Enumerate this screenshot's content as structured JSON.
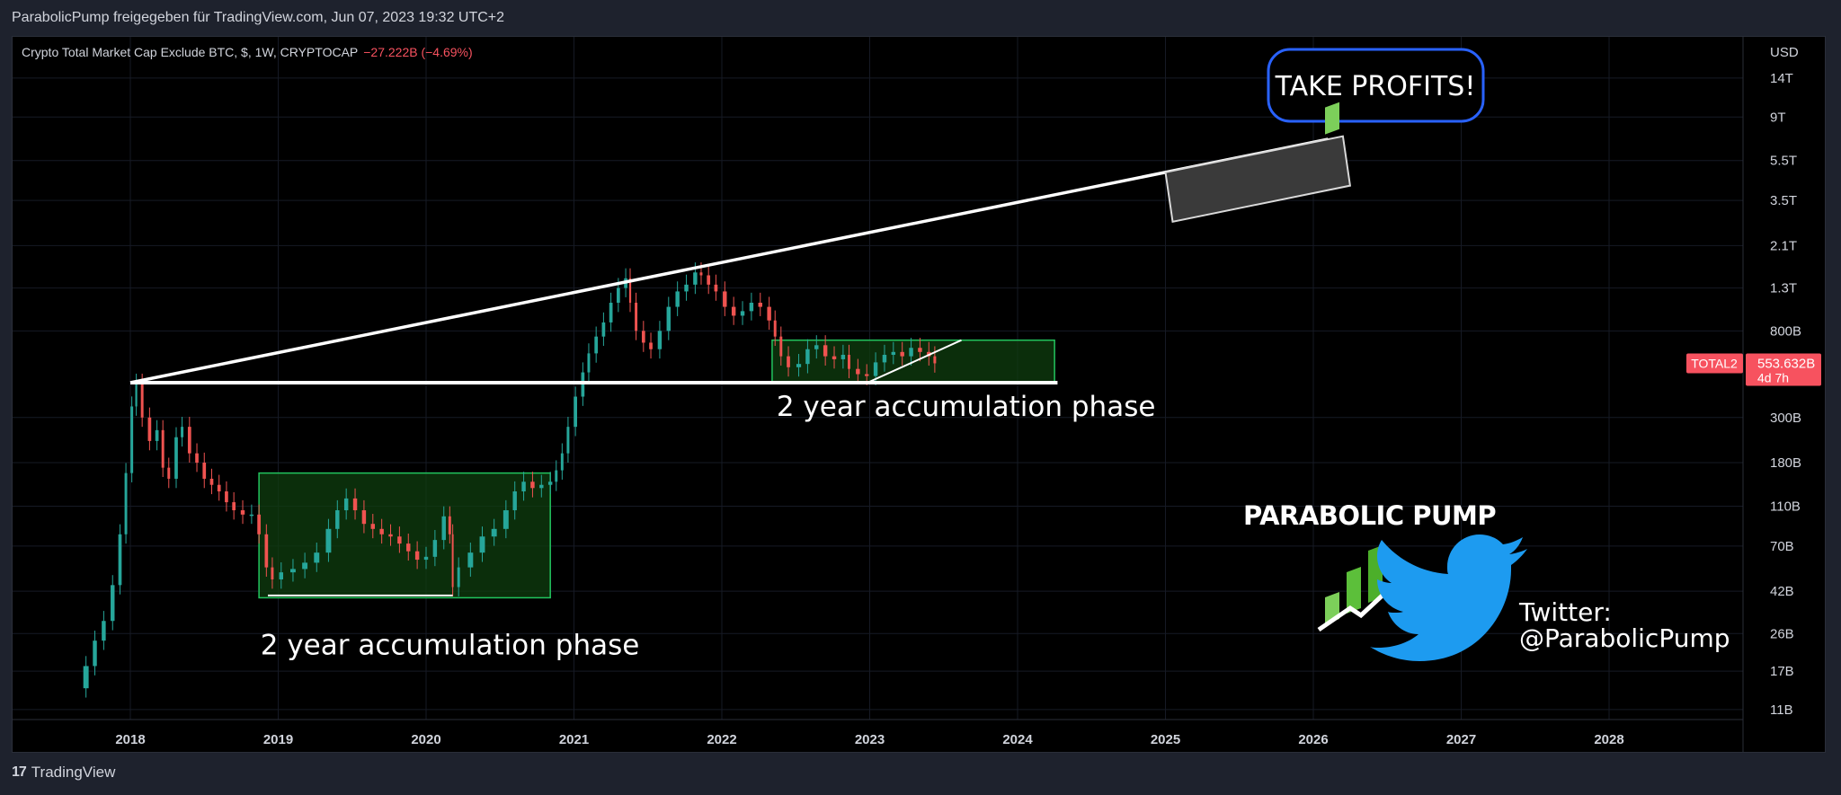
{
  "header": {
    "share_text": "ParabolicPump freigegeben für TradingView.com, Jun 07, 2023 19:32 UTC+2"
  },
  "legend": {
    "symbol_text": "Crypto Total Market Cap Exclude BTC, $, 1W, CRYPTOCAP",
    "change_text": "−27.222B (−4.69%)"
  },
  "footer": {
    "brand": "TradingView"
  },
  "colors": {
    "up": "#26a69a",
    "down": "#ef5350",
    "box_stroke": "#22c55e",
    "box_fill": "#0f3d0f",
    "line": "#ffffff",
    "axis_text": "#d1d4dc",
    "price_tag": "#f7525f",
    "callout_border": "#2962ff",
    "twitter": "#1d9bf0"
  },
  "chart_data": {
    "type": "candlestick",
    "title": "Crypto Total Market Cap Exclude BTC, $, 1W, CRYPTOCAP",
    "scale": "log",
    "y_unit": "USD",
    "ylim": [
      9500000000.0,
      22000000000000.0
    ],
    "xlim": [
      2017.6,
      2028.9
    ],
    "x_ticks": [
      {
        "value": 2018,
        "label": "2018"
      },
      {
        "value": 2019,
        "label": "2019"
      },
      {
        "value": 2020,
        "label": "2020"
      },
      {
        "value": 2021,
        "label": "2021"
      },
      {
        "value": 2022,
        "label": "2022"
      },
      {
        "value": 2023,
        "label": "2023"
      },
      {
        "value": 2024,
        "label": "2024"
      },
      {
        "value": 2025,
        "label": "2025"
      },
      {
        "value": 2026,
        "label": "2026"
      },
      {
        "value": 2027,
        "label": "2027"
      },
      {
        "value": 2028,
        "label": "2028"
      }
    ],
    "y_ticks": [
      {
        "value": 14000000000000.0,
        "label": "14T"
      },
      {
        "value": 9000000000000.0,
        "label": "9T"
      },
      {
        "value": 5500000000000.0,
        "label": "5.5T"
      },
      {
        "value": 3500000000000.0,
        "label": "3.5T"
      },
      {
        "value": 2100000000000.0,
        "label": "2.1T"
      },
      {
        "value": 1300000000000.0,
        "label": "1.3T"
      },
      {
        "value": 800000000000.0,
        "label": "800B"
      },
      {
        "value": 300000000000.0,
        "label": "300B"
      },
      {
        "value": 180000000000.0,
        "label": "180B"
      },
      {
        "value": 110000000000.0,
        "label": "110B"
      },
      {
        "value": 70000000000.0,
        "label": "70B"
      },
      {
        "value": 42000000000.0,
        "label": "42B"
      },
      {
        "value": 26000000000.0,
        "label": "26B"
      },
      {
        "value": 17000000000.0,
        "label": "17B"
      },
      {
        "value": 11000000000.0,
        "label": "11B"
      }
    ],
    "y_axis_label": "USD",
    "price_close": [
      [
        2017.62,
        14000000000.0
      ],
      [
        2017.7,
        18000000000.0
      ],
      [
        2017.76,
        24000000000.0
      ],
      [
        2017.82,
        30000000000.0
      ],
      [
        2017.88,
        45000000000.0
      ],
      [
        2017.93,
        80000000000.0
      ],
      [
        2017.97,
        160000000000.0
      ],
      [
        2018.01,
        340000000000.0
      ],
      [
        2018.04,
        440000000000.0
      ],
      [
        2018.08,
        300000000000.0
      ],
      [
        2018.13,
        230000000000.0
      ],
      [
        2018.18,
        260000000000.0
      ],
      [
        2018.22,
        170000000000.0
      ],
      [
        2018.26,
        150000000000.0
      ],
      [
        2018.31,
        240000000000.0
      ],
      [
        2018.35,
        270000000000.0
      ],
      [
        2018.4,
        200000000000.0
      ],
      [
        2018.45,
        180000000000.0
      ],
      [
        2018.5,
        150000000000.0
      ],
      [
        2018.55,
        140000000000.0
      ],
      [
        2018.6,
        130000000000.0
      ],
      [
        2018.65,
        115000000000.0
      ],
      [
        2018.7,
        105000000000.0
      ],
      [
        2018.76,
        100000000000.0
      ],
      [
        2018.82,
        100000000000.0
      ],
      [
        2018.87,
        80000000000.0
      ],
      [
        2018.92,
        55000000000.0
      ],
      [
        2018.96,
        48000000000.0
      ],
      [
        2019.02,
        52000000000.0
      ],
      [
        2019.1,
        54000000000.0
      ],
      [
        2019.18,
        58000000000.0
      ],
      [
        2019.26,
        65000000000.0
      ],
      [
        2019.34,
        85000000000.0
      ],
      [
        2019.4,
        105000000000.0
      ],
      [
        2019.46,
        120000000000.0
      ],
      [
        2019.52,
        105000000000.0
      ],
      [
        2019.58,
        90000000000.0
      ],
      [
        2019.64,
        85000000000.0
      ],
      [
        2019.7,
        80000000000.0
      ],
      [
        2019.76,
        78000000000.0
      ],
      [
        2019.82,
        72000000000.0
      ],
      [
        2019.88,
        66000000000.0
      ],
      [
        2019.94,
        60000000000.0
      ],
      [
        2020.0,
        62000000000.0
      ],
      [
        2020.06,
        75000000000.0
      ],
      [
        2020.12,
        98000000000.0
      ],
      [
        2020.16,
        80000000000.0
      ],
      [
        2020.18,
        44000000000.0
      ],
      [
        2020.22,
        55000000000.0
      ],
      [
        2020.3,
        65000000000.0
      ],
      [
        2020.38,
        78000000000.0
      ],
      [
        2020.46,
        85000000000.0
      ],
      [
        2020.54,
        105000000000.0
      ],
      [
        2020.6,
        130000000000.0
      ],
      [
        2020.66,
        145000000000.0
      ],
      [
        2020.72,
        135000000000.0
      ],
      [
        2020.78,
        140000000000.0
      ],
      [
        2020.84,
        145000000000.0
      ],
      [
        2020.88,
        165000000000.0
      ],
      [
        2020.92,
        200000000000.0
      ],
      [
        2020.96,
        270000000000.0
      ],
      [
        2021.01,
        380000000000.0
      ],
      [
        2021.06,
        500000000000.0
      ],
      [
        2021.1,
        620000000000.0
      ],
      [
        2021.15,
        750000000000.0
      ],
      [
        2021.2,
        880000000000.0
      ],
      [
        2021.25,
        1100000000000.0
      ],
      [
        2021.3,
        1300000000000.0
      ],
      [
        2021.35,
        1450000000000.0
      ],
      [
        2021.38,
        1100000000000.0
      ],
      [
        2021.42,
        800000000000.0
      ],
      [
        2021.47,
        700000000000.0
      ],
      [
        2021.52,
        650000000000.0
      ],
      [
        2021.58,
        800000000000.0
      ],
      [
        2021.64,
        1050000000000.0
      ],
      [
        2021.7,
        1250000000000.0
      ],
      [
        2021.76,
        1350000000000.0
      ],
      [
        2021.82,
        1550000000000.0
      ],
      [
        2021.86,
        1500000000000.0
      ],
      [
        2021.91,
        1350000000000.0
      ],
      [
        2021.96,
        1250000000000.0
      ],
      [
        2022.02,
        1050000000000.0
      ],
      [
        2022.08,
        950000000000.0
      ],
      [
        2022.14,
        1000000000000.0
      ],
      [
        2022.2,
        1100000000000.0
      ],
      [
        2022.26,
        1050000000000.0
      ],
      [
        2022.32,
        900000000000.0
      ],
      [
        2022.36,
        750000000000.0
      ],
      [
        2022.4,
        600000000000.0
      ],
      [
        2022.45,
        530000000000.0
      ],
      [
        2022.52,
        550000000000.0
      ],
      [
        2022.58,
        650000000000.0
      ],
      [
        2022.64,
        680000000000.0
      ],
      [
        2022.7,
        600000000000.0
      ],
      [
        2022.76,
        580000000000.0
      ],
      [
        2022.82,
        610000000000.0
      ],
      [
        2022.86,
        520000000000.0
      ],
      [
        2022.92,
        490000000000.0
      ],
      [
        2022.98,
        480000000000.0
      ],
      [
        2023.04,
        560000000000.0
      ],
      [
        2023.1,
        610000000000.0
      ],
      [
        2023.16,
        630000000000.0
      ],
      [
        2023.22,
        600000000000.0
      ],
      [
        2023.28,
        660000000000.0
      ],
      [
        2023.34,
        630000000000.0
      ],
      [
        2023.4,
        600000000000.0
      ],
      [
        2023.44,
        554000000000.0
      ]
    ],
    "last_price": {
      "symbol": "TOTAL2",
      "value": "553.632B",
      "countdown": "4d 7h"
    },
    "annotations": {
      "callout": "TAKE PROFITS!",
      "box1_label": "2 year accumulation phase",
      "box2_label": "2 year accumulation phase",
      "brand_text": "PARABOLIC PUMP",
      "twitter_line1": "Twitter:",
      "twitter_line2": "@ParabolicPump"
    },
    "drawings": {
      "support_line": {
        "x": [
          2018.0,
          2024.27
        ],
        "y": [
          445000000000.0,
          445000000000.0
        ]
      },
      "rising_line": {
        "x": [
          2018.0,
          2026.1
        ],
        "y": [
          445000000000.0,
          7000000000000.0
        ]
      },
      "box1": {
        "x": [
          2018.87,
          2020.84
        ],
        "y": [
          39000000000.0,
          160000000000.0
        ]
      },
      "box2": {
        "x": [
          2022.34,
          2024.25
        ],
        "y": [
          440000000000.0,
          720000000000.0
        ]
      },
      "target_box": {
        "x": [
          2025.0,
          2026.2
        ],
        "y": [
          2500000000000.0,
          6600000000000.0
        ]
      },
      "mini_trend": {
        "x": [
          2023.0,
          2023.62
        ],
        "y": [
          450000000000.0,
          720000000000.0
        ]
      },
      "box1_floor": {
        "x": [
          2018.93,
          2020.18
        ],
        "y": [
          40000000000.0,
          40000000000.0
        ]
      }
    }
  }
}
